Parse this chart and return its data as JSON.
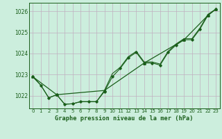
{
  "title": "Graphe pression niveau de la mer (hPa)",
  "bg_color": "#cceedd",
  "grid_color_major": "#c0b0c0",
  "grid_color_minor": "#ddc8d8",
  "line_color": "#1a5e1a",
  "xlim": [
    -0.5,
    23.5
  ],
  "ylim": [
    1021.4,
    1026.4
  ],
  "xticks": [
    0,
    1,
    2,
    3,
    4,
    5,
    6,
    7,
    8,
    9,
    10,
    11,
    12,
    13,
    14,
    15,
    16,
    17,
    18,
    19,
    20,
    21,
    22,
    23
  ],
  "yticks": [
    1022,
    1023,
    1024,
    1025,
    1026
  ],
  "hours": [
    0,
    1,
    2,
    3,
    4,
    5,
    6,
    7,
    8,
    9,
    10,
    11,
    12,
    13,
    14,
    15,
    16,
    17,
    18,
    19,
    20,
    21,
    22,
    23
  ],
  "series1": [
    1022.9,
    1022.5,
    1021.9,
    1022.05,
    1021.6,
    1021.62,
    1021.72,
    1021.72,
    1021.72,
    1022.2,
    1022.9,
    1023.3,
    1023.8,
    1024.05,
    1023.55,
    1023.55,
    1023.45,
    1024.05,
    1024.4,
    1024.65,
    1024.65,
    1025.15,
    1025.8,
    1026.1
  ],
  "series2": [
    1022.9,
    1022.5,
    1021.9,
    1022.05,
    1021.6,
    1021.62,
    1021.72,
    1021.72,
    1021.72,
    1022.25,
    1023.05,
    1023.35,
    1023.85,
    1024.1,
    1023.6,
    1023.6,
    1023.5,
    1024.1,
    1024.45,
    1024.7,
    1024.7,
    1025.2,
    1025.85,
    1026.1
  ],
  "series3_x": [
    0,
    3,
    9,
    14,
    19,
    22,
    23
  ],
  "series3_y": [
    1022.9,
    1022.05,
    1022.25,
    1023.55,
    1024.65,
    1025.8,
    1026.1
  ]
}
